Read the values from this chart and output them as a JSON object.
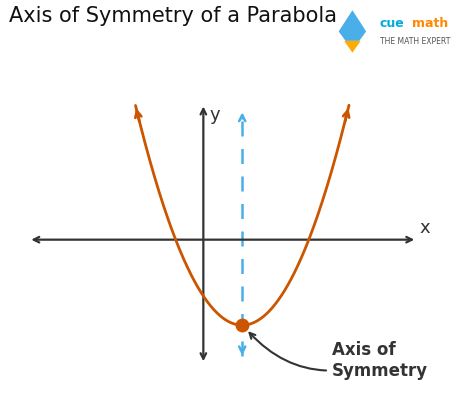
{
  "title": "Axis of Symmetry of a Parabola",
  "title_fontsize": 15,
  "background_color": "#ffffff",
  "parabola_color": "#cc5500",
  "axis_color": "#333333",
  "symmetry_axis_color": "#4aaee8",
  "vertex_color": "#cc5500",
  "vertex_x": 1.0,
  "vertex_y": -2.2,
  "parabola_a": 0.75,
  "xlim": [
    -4.5,
    5.5
  ],
  "ylim": [
    -3.2,
    3.5
  ],
  "axis_label_x": "x",
  "axis_label_y": "y",
  "annotation_text": "Axis of\nSymmetry",
  "annotation_fontsize": 12,
  "cuemath_text1": "cuemath",
  "cuemath_text2": "THE MATH EXPERT"
}
